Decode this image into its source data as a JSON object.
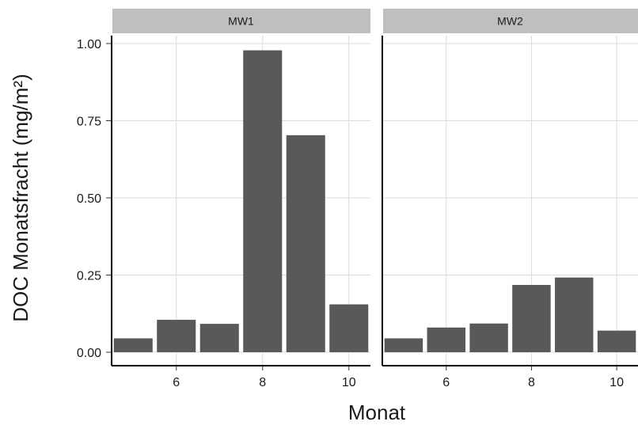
{
  "chart_data": {
    "type": "bar",
    "xlabel": "Monat",
    "ylabel": "DOC Monatsfracht (mg/m²)",
    "ylim": [
      0,
      1.0
    ],
    "xlim": [
      4.5,
      10.5
    ],
    "y_ticks": [
      0.0,
      0.25,
      0.5,
      0.75,
      1.0
    ],
    "y_tick_labels": [
      "0.00",
      "0.25",
      "0.50",
      "0.75",
      "1.00"
    ],
    "x_ticks": [
      6,
      8,
      10
    ],
    "x_tick_labels": [
      "6",
      "8",
      "10"
    ],
    "grid": true,
    "facets": [
      {
        "label": "MW1",
        "x": [
          5,
          6,
          7,
          8,
          9,
          10
        ],
        "values": [
          0.045,
          0.105,
          0.092,
          0.978,
          0.703,
          0.155
        ]
      },
      {
        "label": "MW2",
        "x": [
          5,
          6,
          7,
          8,
          9,
          10
        ],
        "values": [
          0.045,
          0.08,
          0.093,
          0.218,
          0.242,
          0.07
        ]
      }
    ],
    "colors": {
      "bar": "#595959",
      "strip": "#bfbfbf",
      "grid": "#dcdcdc"
    }
  }
}
